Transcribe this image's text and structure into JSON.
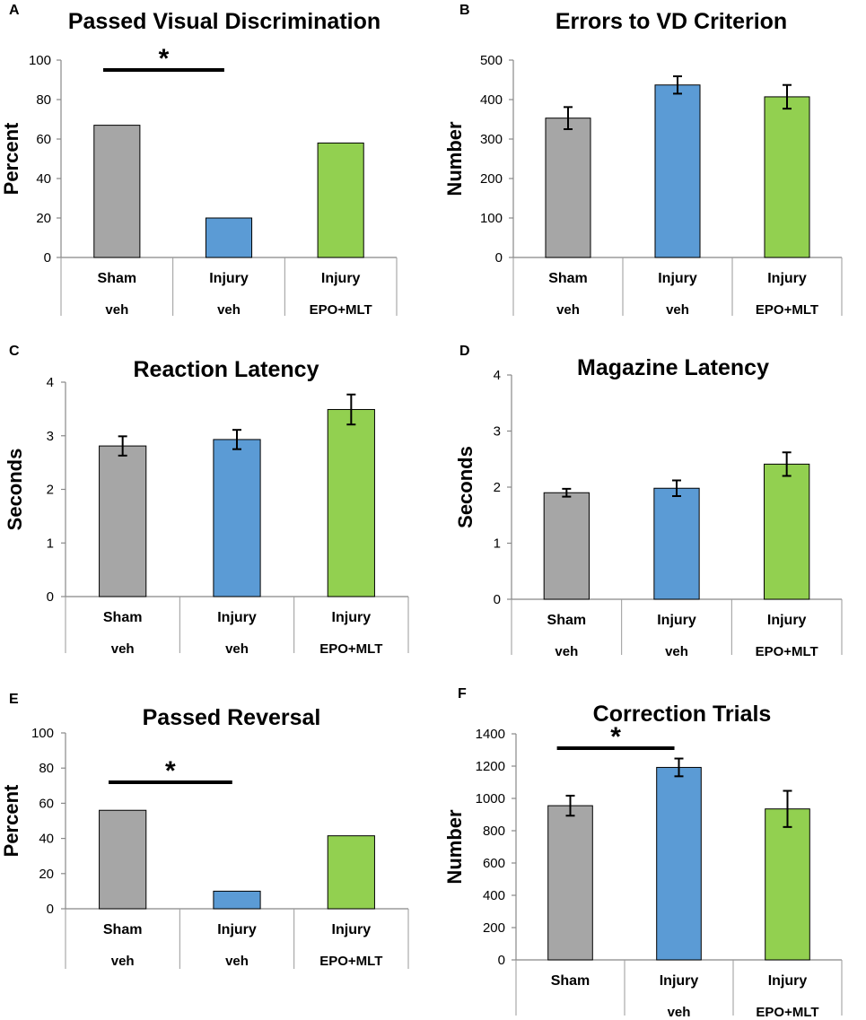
{
  "colors": {
    "sham_veh": "#A6A6A6",
    "injury_veh": "#5B9BD5",
    "injury_epo_mlt": "#92D050"
  },
  "chart_data": [
    {
      "panel": "A",
      "type": "bar",
      "title": "Passed Visual Discrimination",
      "ylabel": "Percent",
      "ylim": [
        0,
        100
      ],
      "yticks": [
        "0",
        "20",
        "40",
        "60",
        "80",
        "100"
      ],
      "categories": [
        {
          "line1": "Sham",
          "line2": "veh"
        },
        {
          "line1": "Injury",
          "line2": "veh"
        },
        {
          "line1": "Injury",
          "line2": "EPO+MLT"
        }
      ],
      "values": [
        67,
        20,
        58
      ],
      "errors": null,
      "significance": {
        "from": 0,
        "to": 1,
        "label": "*"
      }
    },
    {
      "panel": "B",
      "type": "bar",
      "title": "Errors to VD Criterion",
      "ylabel": "Number",
      "ylim": [
        0,
        500
      ],
      "yticks": [
        "0",
        "100",
        "200",
        "300",
        "400",
        "500"
      ],
      "categories": [
        {
          "line1": "Sham",
          "line2": "veh"
        },
        {
          "line1": "Injury",
          "line2": "veh"
        },
        {
          "line1": "Injury",
          "line2": "EPO+MLT"
        }
      ],
      "values": [
        353,
        437,
        407
      ],
      "errors": [
        28,
        22,
        30
      ],
      "significance": null
    },
    {
      "panel": "C",
      "type": "bar",
      "title": "Reaction Latency",
      "ylabel": "Seconds",
      "ylim": [
        0,
        4
      ],
      "yticks": [
        "0",
        "1",
        "2",
        "3",
        "4"
      ],
      "categories": [
        {
          "line1": "Sham",
          "line2": "veh"
        },
        {
          "line1": "Injury",
          "line2": "veh"
        },
        {
          "line1": "Injury",
          "line2": "EPO+MLT"
        }
      ],
      "values": [
        2.81,
        2.93,
        3.49
      ],
      "errors": [
        0.18,
        0.18,
        0.28
      ],
      "significance": null
    },
    {
      "panel": "D",
      "type": "bar",
      "title": "Magazine Latency",
      "ylabel": "Seconds",
      "ylim": [
        0,
        4
      ],
      "yticks": [
        "0",
        "1",
        "2",
        "3",
        "4"
      ],
      "categories": [
        {
          "line1": "Sham",
          "line2": "veh"
        },
        {
          "line1": "Injury",
          "line2": "veh"
        },
        {
          "line1": "Injury",
          "line2": "EPO+MLT"
        }
      ],
      "values": [
        1.9,
        1.98,
        2.41
      ],
      "errors": [
        0.07,
        0.14,
        0.21
      ],
      "significance": null
    },
    {
      "panel": "E",
      "type": "bar",
      "title": "Passed Reversal",
      "ylabel": "Percent",
      "ylim": [
        0,
        100
      ],
      "yticks": [
        "0",
        "20",
        "40",
        "60",
        "80",
        "100"
      ],
      "categories": [
        {
          "line1": "Sham",
          "line2": "veh"
        },
        {
          "line1": "Injury",
          "line2": "veh"
        },
        {
          "line1": "Injury",
          "line2": "EPO+MLT"
        }
      ],
      "values": [
        56,
        10,
        41.5
      ],
      "errors": null,
      "significance": {
        "from": 0,
        "to": 1,
        "label": "*"
      }
    },
    {
      "panel": "F",
      "type": "bar",
      "title": "Correction Trials",
      "ylabel": "Number",
      "ylim": [
        0,
        1400
      ],
      "yticks": [
        "0",
        "200",
        "400",
        "600",
        "800",
        "1000",
        "1200",
        "1400"
      ],
      "categories": [
        {
          "line1": "Sham",
          "line2": ""
        },
        {
          "line1": "Injury",
          "line2": "veh"
        },
        {
          "line1": "Injury",
          "line2": "EPO+MLT"
        }
      ],
      "values": [
        955,
        1192,
        935
      ],
      "errors": [
        62,
        55,
        112
      ],
      "significance": {
        "from": 0,
        "to": 1,
        "label": "*"
      }
    }
  ]
}
